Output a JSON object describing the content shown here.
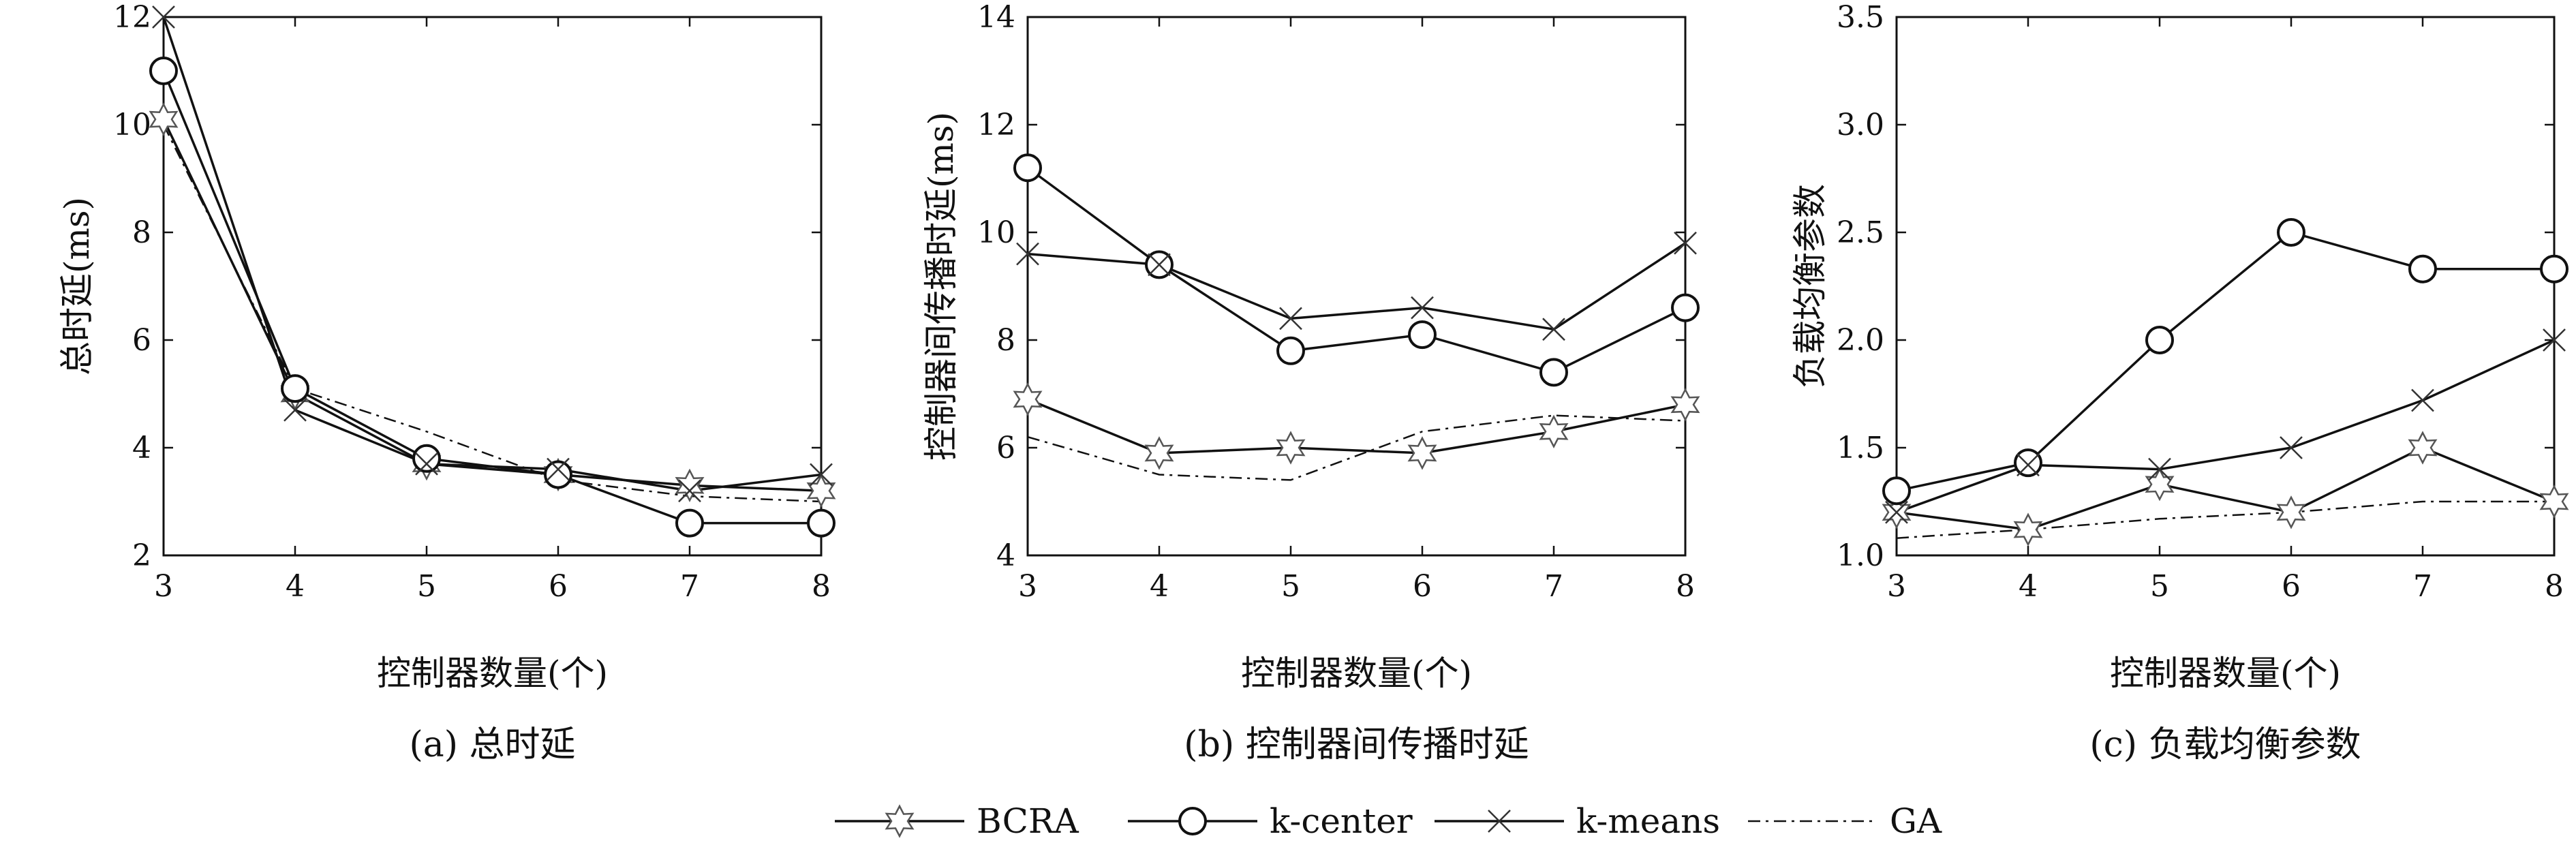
{
  "chart_data": [
    {
      "type": "line",
      "caption": "(a) 总时延",
      "xlabel": "控制器数量(个)",
      "ylabel": "总时延(ms)",
      "x": [
        3,
        4,
        5,
        6,
        7,
        8
      ],
      "xlim": [
        3,
        8
      ],
      "ylim": [
        2,
        12
      ],
      "yticks": [
        2,
        4,
        6,
        8,
        10,
        12
      ],
      "ytick_labels": [
        "2",
        "4",
        "6",
        "8",
        "10",
        "12"
      ],
      "grid": false,
      "series": [
        {
          "name": "BCRA",
          "values": [
            10.1,
            5.0,
            3.7,
            3.5,
            3.3,
            3.2
          ]
        },
        {
          "name": "k-center",
          "values": [
            11.0,
            5.1,
            3.8,
            3.5,
            2.6,
            2.6
          ]
        },
        {
          "name": "k-means",
          "values": [
            12.0,
            4.7,
            3.7,
            3.6,
            3.2,
            3.5
          ]
        },
        {
          "name": "GA",
          "values": [
            10.0,
            5.1,
            4.3,
            3.4,
            3.1,
            3.0
          ]
        }
      ]
    },
    {
      "type": "line",
      "caption": "(b) 控制器间传播时延",
      "xlabel": "控制器数量(个)",
      "ylabel": "控制器间传播时延(ms)",
      "x": [
        3,
        4,
        5,
        6,
        7,
        8
      ],
      "xlim": [
        3,
        8
      ],
      "ylim": [
        4,
        14
      ],
      "yticks": [
        4,
        6,
        8,
        10,
        12,
        14
      ],
      "ytick_labels": [
        "4",
        "6",
        "8",
        "10",
        "12",
        "14"
      ],
      "grid": false,
      "series": [
        {
          "name": "BCRA",
          "values": [
            6.9,
            5.9,
            6.0,
            5.9,
            6.3,
            6.8
          ]
        },
        {
          "name": "k-center",
          "values": [
            11.2,
            9.4,
            7.8,
            8.1,
            7.4,
            8.6
          ]
        },
        {
          "name": "k-means",
          "values": [
            9.6,
            9.4,
            8.4,
            8.6,
            8.2,
            9.8
          ]
        },
        {
          "name": "GA",
          "values": [
            6.2,
            5.5,
            5.4,
            6.3,
            6.6,
            6.5
          ]
        }
      ]
    },
    {
      "type": "line",
      "caption": "(c) 负载均衡参数",
      "xlabel": "控制器数量(个)",
      "ylabel": "负载均衡参数",
      "x": [
        3,
        4,
        5,
        6,
        7,
        8
      ],
      "xlim": [
        3,
        8
      ],
      "ylim": [
        1.0,
        3.5
      ],
      "yticks": [
        1.0,
        1.5,
        2.0,
        2.5,
        3.0,
        3.5
      ],
      "ytick_labels": [
        "1.0",
        "1.5",
        "2.0",
        "2.5",
        "3.0",
        "3.5"
      ],
      "grid": false,
      "series": [
        {
          "name": "BCRA",
          "values": [
            1.2,
            1.12,
            1.33,
            1.2,
            1.5,
            1.25
          ]
        },
        {
          "name": "k-center",
          "values": [
            1.3,
            1.43,
            2.0,
            2.5,
            2.33,
            2.33
          ]
        },
        {
          "name": "k-means",
          "values": [
            1.2,
            1.42,
            1.4,
            1.5,
            1.72,
            2.0
          ]
        },
        {
          "name": "GA",
          "values": [
            1.08,
            1.12,
            1.17,
            1.2,
            1.25,
            1.25
          ]
        }
      ]
    }
  ],
  "legend": {
    "placement": "bottom-center",
    "entries": [
      {
        "label": "BCRA",
        "marker": "star-icon",
        "dash": "solid"
      },
      {
        "label": "k-center",
        "marker": "circle-icon",
        "dash": "solid"
      },
      {
        "label": "k-means",
        "marker": "cross-icon",
        "dash": "solid"
      },
      {
        "label": "GA",
        "marker": "none",
        "dash": "dashdot"
      }
    ]
  }
}
